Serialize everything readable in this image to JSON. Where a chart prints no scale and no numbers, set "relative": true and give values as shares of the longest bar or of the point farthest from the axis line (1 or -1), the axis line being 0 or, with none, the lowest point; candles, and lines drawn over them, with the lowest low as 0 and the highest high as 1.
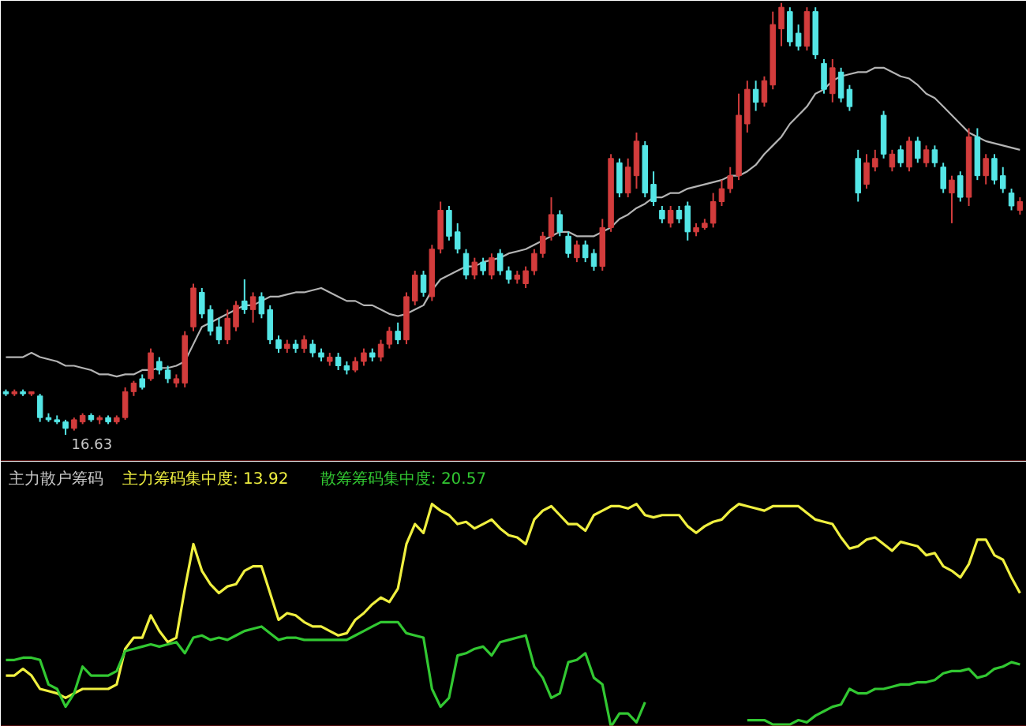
{
  "chart_data": [
    {
      "type": "candlestick",
      "relative": true,
      "categories": [
        null,
        null,
        null,
        null,
        null,
        null,
        null,
        null,
        null,
        null,
        null,
        null,
        null,
        null,
        null,
        null,
        null,
        null,
        null,
        null,
        null,
        null,
        null,
        null,
        null,
        null,
        null,
        null,
        null,
        null,
        null,
        null,
        null,
        null,
        null,
        null,
        null,
        null,
        null,
        null,
        null,
        null,
        null,
        null,
        null,
        null,
        null,
        null,
        null,
        null,
        null,
        null,
        null,
        null,
        null,
        null,
        null,
        null,
        null,
        null,
        null,
        null,
        null,
        null,
        null,
        null,
        null,
        null,
        null,
        null,
        null,
        null,
        null,
        null,
        null,
        null,
        null,
        null,
        null,
        null,
        null,
        null,
        null,
        null,
        null,
        null,
        null,
        null,
        null,
        null,
        null,
        null,
        null,
        null,
        null,
        null,
        null,
        null,
        null,
        null,
        null,
        null,
        null,
        null,
        null,
        null,
        null,
        null,
        null,
        null,
        null,
        null,
        null,
        null,
        null,
        null,
        null,
        null,
        null,
        null
      ],
      "ohlc": [
        [
          0.1,
          0.105,
          0.09,
          0.095
        ],
        [
          0.095,
          0.105,
          0.09,
          0.1
        ],
        [
          0.1,
          0.105,
          0.09,
          0.095
        ],
        [
          0.095,
          0.1,
          0.09,
          0.1
        ],
        [
          0.09,
          0.095,
          0.03,
          0.04
        ],
        [
          0.04,
          0.05,
          0.03,
          0.035
        ],
        [
          0.035,
          0.045,
          0.025,
          0.03
        ],
        [
          0.03,
          0.035,
          0.0,
          0.015
        ],
        [
          0.015,
          0.04,
          0.01,
          0.035
        ],
        [
          0.03,
          0.05,
          0.025,
          0.045
        ],
        [
          0.045,
          0.05,
          0.03,
          0.035
        ],
        [
          0.035,
          0.045,
          0.025,
          0.04
        ],
        [
          0.04,
          0.045,
          0.025,
          0.03
        ],
        [
          0.03,
          0.045,
          0.025,
          0.04
        ],
        [
          0.04,
          0.11,
          0.035,
          0.1
        ],
        [
          0.1,
          0.125,
          0.09,
          0.12
        ],
        [
          0.13,
          0.14,
          0.105,
          0.11
        ],
        [
          0.13,
          0.2,
          0.125,
          0.19
        ],
        [
          0.17,
          0.18,
          0.14,
          0.15
        ],
        [
          0.15,
          0.16,
          0.12,
          0.13
        ],
        [
          0.12,
          0.14,
          0.11,
          0.13
        ],
        [
          0.12,
          0.24,
          0.11,
          0.23
        ],
        [
          0.25,
          0.35,
          0.24,
          0.34
        ],
        [
          0.33,
          0.34,
          0.27,
          0.28
        ],
        [
          0.29,
          0.3,
          0.23,
          0.24
        ],
        [
          0.25,
          0.27,
          0.21,
          0.22
        ],
        [
          0.22,
          0.29,
          0.21,
          0.27
        ],
        [
          0.25,
          0.31,
          0.24,
          0.3
        ],
        [
          0.31,
          0.36,
          0.28,
          0.29
        ],
        [
          0.29,
          0.33,
          0.26,
          0.32
        ],
        [
          0.32,
          0.33,
          0.27,
          0.28
        ],
        [
          0.29,
          0.3,
          0.21,
          0.22
        ],
        [
          0.22,
          0.23,
          0.19,
          0.2
        ],
        [
          0.2,
          0.22,
          0.19,
          0.21
        ],
        [
          0.21,
          0.22,
          0.19,
          0.2
        ],
        [
          0.2,
          0.23,
          0.19,
          0.22
        ],
        [
          0.21,
          0.22,
          0.18,
          0.19
        ],
        [
          0.19,
          0.2,
          0.17,
          0.18
        ],
        [
          0.17,
          0.19,
          0.16,
          0.18
        ],
        [
          0.18,
          0.19,
          0.15,
          0.16
        ],
        [
          0.16,
          0.17,
          0.14,
          0.15
        ],
        [
          0.15,
          0.18,
          0.145,
          0.17
        ],
        [
          0.17,
          0.2,
          0.16,
          0.19
        ],
        [
          0.19,
          0.2,
          0.17,
          0.18
        ],
        [
          0.18,
          0.22,
          0.17,
          0.21
        ],
        [
          0.21,
          0.25,
          0.2,
          0.24
        ],
        [
          0.24,
          0.26,
          0.21,
          0.22
        ],
        [
          0.22,
          0.33,
          0.21,
          0.32
        ],
        [
          0.31,
          0.38,
          0.3,
          0.37
        ],
        [
          0.37,
          0.38,
          0.32,
          0.33
        ],
        [
          0.32,
          0.44,
          0.31,
          0.43
        ],
        [
          0.43,
          0.54,
          0.42,
          0.52
        ],
        [
          0.52,
          0.53,
          0.45,
          0.46
        ],
        [
          0.47,
          0.49,
          0.42,
          0.43
        ],
        [
          0.42,
          0.43,
          0.36,
          0.37
        ],
        [
          0.37,
          0.41,
          0.36,
          0.4
        ],
        [
          0.4,
          0.41,
          0.37,
          0.38
        ],
        [
          0.37,
          0.42,
          0.36,
          0.41
        ],
        [
          0.42,
          0.43,
          0.37,
          0.38
        ],
        [
          0.38,
          0.39,
          0.35,
          0.36
        ],
        [
          0.36,
          0.38,
          0.35,
          0.37
        ],
        [
          0.35,
          0.39,
          0.34,
          0.38
        ],
        [
          0.38,
          0.43,
          0.37,
          0.42
        ],
        [
          0.42,
          0.47,
          0.41,
          0.46
        ],
        [
          0.46,
          0.55,
          0.45,
          0.51
        ],
        [
          0.51,
          0.52,
          0.46,
          0.47
        ],
        [
          0.46,
          0.47,
          0.41,
          0.42
        ],
        [
          0.41,
          0.45,
          0.4,
          0.44
        ],
        [
          0.44,
          0.45,
          0.4,
          0.41
        ],
        [
          0.42,
          0.43,
          0.38,
          0.39
        ],
        [
          0.39,
          0.5,
          0.38,
          0.48
        ],
        [
          0.48,
          0.65,
          0.47,
          0.64
        ],
        [
          0.63,
          0.64,
          0.55,
          0.56
        ],
        [
          0.56,
          0.64,
          0.55,
          0.62
        ],
        [
          0.6,
          0.7,
          0.57,
          0.68
        ],
        [
          0.67,
          0.68,
          0.55,
          0.56
        ],
        [
          0.58,
          0.61,
          0.53,
          0.54
        ],
        [
          0.52,
          0.53,
          0.49,
          0.5
        ],
        [
          0.49,
          0.53,
          0.48,
          0.52
        ],
        [
          0.52,
          0.53,
          0.49,
          0.5
        ],
        [
          0.53,
          0.54,
          0.45,
          0.47
        ],
        [
          0.47,
          0.49,
          0.46,
          0.48
        ],
        [
          0.48,
          0.5,
          0.475,
          0.49
        ],
        [
          0.49,
          0.56,
          0.48,
          0.54
        ],
        [
          0.54,
          0.59,
          0.53,
          0.57
        ],
        [
          0.57,
          0.62,
          0.56,
          0.6
        ],
        [
          0.6,
          0.79,
          0.59,
          0.74
        ],
        [
          0.72,
          0.82,
          0.7,
          0.8
        ],
        [
          0.8,
          0.82,
          0.75,
          0.77
        ],
        [
          0.77,
          0.83,
          0.76,
          0.82
        ],
        [
          0.81,
          0.98,
          0.8,
          0.95
        ],
        [
          0.94,
          1.0,
          0.9,
          0.99
        ],
        [
          0.98,
          0.99,
          0.9,
          0.91
        ],
        [
          0.93,
          0.95,
          0.89,
          0.9
        ],
        [
          0.9,
          0.99,
          0.89,
          0.98
        ],
        [
          0.98,
          0.99,
          0.87,
          0.88
        ],
        [
          0.86,
          0.87,
          0.79,
          0.8
        ],
        [
          0.79,
          0.87,
          0.77,
          0.85
        ],
        [
          0.84,
          0.85,
          0.77,
          0.78
        ],
        [
          0.8,
          0.81,
          0.75,
          0.76
        ],
        [
          0.64,
          0.66,
          0.54,
          0.56
        ],
        [
          0.58,
          0.65,
          0.57,
          0.63
        ],
        [
          0.62,
          0.66,
          0.61,
          0.64
        ],
        [
          0.74,
          0.75,
          0.64,
          0.65
        ],
        [
          0.62,
          0.66,
          0.61,
          0.65
        ],
        [
          0.66,
          0.67,
          0.62,
          0.63
        ],
        [
          0.62,
          0.69,
          0.61,
          0.68
        ],
        [
          0.68,
          0.69,
          0.63,
          0.64
        ],
        [
          0.63,
          0.67,
          0.62,
          0.66
        ],
        [
          0.66,
          0.67,
          0.62,
          0.63
        ],
        [
          0.62,
          0.63,
          0.56,
          0.57
        ],
        [
          0.56,
          0.6,
          0.49,
          0.59
        ],
        [
          0.6,
          0.61,
          0.54,
          0.55
        ],
        [
          0.55,
          0.71,
          0.53,
          0.69
        ],
        [
          0.69,
          0.71,
          0.59,
          0.6
        ],
        [
          0.6,
          0.65,
          0.58,
          0.64
        ],
        [
          0.64,
          0.65,
          0.58,
          0.59
        ],
        [
          0.6,
          0.62,
          0.56,
          0.57
        ],
        [
          0.56,
          0.57,
          0.52,
          0.53
        ],
        [
          0.52,
          0.55,
          0.51,
          0.54
        ]
      ],
      "series": [
        {
          "type": "line",
          "color": "#b4b4b4",
          "values": [
            0.18,
            0.18,
            0.18,
            0.19,
            0.18,
            0.175,
            0.17,
            0.16,
            0.16,
            0.155,
            0.15,
            0.14,
            0.14,
            0.135,
            0.14,
            0.14,
            0.15,
            0.15,
            0.155,
            0.155,
            0.16,
            0.17,
            0.21,
            0.25,
            0.26,
            0.27,
            0.28,
            0.29,
            0.3,
            0.3,
            0.31,
            0.32,
            0.32,
            0.325,
            0.33,
            0.33,
            0.335,
            0.34,
            0.33,
            0.32,
            0.31,
            0.31,
            0.3,
            0.3,
            0.29,
            0.28,
            0.275,
            0.28,
            0.29,
            0.3,
            0.335,
            0.36,
            0.37,
            0.38,
            0.39,
            0.39,
            0.4,
            0.405,
            0.41,
            0.42,
            0.425,
            0.43,
            0.44,
            0.45,
            0.46,
            0.47,
            0.47,
            0.46,
            0.46,
            0.46,
            0.47,
            0.48,
            0.5,
            0.51,
            0.525,
            0.535,
            0.55,
            0.55,
            0.56,
            0.56,
            0.57,
            0.575,
            0.58,
            0.585,
            0.59,
            0.6,
            0.6,
            0.61,
            0.625,
            0.65,
            0.67,
            0.69,
            0.72,
            0.74,
            0.76,
            0.79,
            0.8,
            0.82,
            0.83,
            0.835,
            0.84,
            0.84,
            0.85,
            0.85,
            0.84,
            0.83,
            0.825,
            0.81,
            0.79,
            0.78,
            0.76,
            0.74,
            0.72,
            0.7,
            0.69,
            0.68,
            0.675,
            0.67,
            0.665,
            0.66
          ]
        }
      ],
      "annotations": [
        "16.63"
      ]
    },
    {
      "type": "line",
      "relative": true,
      "title": "主力散户筹码",
      "categories": [
        null,
        null,
        null,
        null,
        null,
        null,
        null,
        null,
        null,
        null,
        null,
        null,
        null,
        null,
        null,
        null,
        null,
        null,
        null,
        null,
        null,
        null,
        null,
        null,
        null,
        null,
        null,
        null,
        null,
        null,
        null,
        null,
        null,
        null,
        null,
        null,
        null,
        null,
        null,
        null,
        null,
        null,
        null,
        null,
        null,
        null,
        null,
        null,
        null,
        null,
        null,
        null,
        null,
        null,
        null,
        null,
        null,
        null,
        null,
        null,
        null,
        null,
        null,
        null,
        null,
        null,
        null,
        null,
        null,
        null,
        null,
        null,
        null,
        null,
        null,
        null,
        null,
        null,
        null,
        null,
        null,
        null,
        null,
        null,
        null,
        null,
        null,
        null,
        null,
        null,
        null,
        null,
        null,
        null,
        null,
        null,
        null,
        null,
        null,
        null,
        null,
        null,
        null,
        null,
        null,
        null,
        null,
        null,
        null,
        null,
        null,
        null,
        null,
        null,
        null,
        null,
        null,
        null,
        null,
        null
      ],
      "series": [
        {
          "name": "主力筹码集中度: 13.92",
          "color": "#f0f040",
          "values": [
            0.23,
            0.23,
            0.26,
            0.23,
            0.17,
            0.16,
            0.15,
            0.13,
            0.15,
            0.17,
            0.17,
            0.17,
            0.17,
            0.19,
            0.35,
            0.4,
            0.4,
            0.5,
            0.43,
            0.38,
            0.4,
            0.62,
            0.82,
            0.7,
            0.64,
            0.6,
            0.63,
            0.64,
            0.7,
            0.72,
            0.72,
            0.6,
            0.48,
            0.51,
            0.5,
            0.47,
            0.45,
            0.45,
            0.43,
            0.41,
            0.42,
            0.48,
            0.51,
            0.55,
            0.58,
            0.56,
            0.62,
            0.82,
            0.91,
            0.87,
            1.0,
            0.97,
            0.95,
            0.91,
            0.92,
            0.89,
            0.91,
            0.93,
            0.89,
            0.86,
            0.85,
            0.82,
            0.93,
            0.97,
            0.99,
            0.95,
            0.91,
            0.91,
            0.88,
            0.95,
            0.97,
            0.99,
            0.99,
            0.98,
            1.0,
            0.95,
            0.94,
            0.95,
            0.95,
            0.95,
            0.9,
            0.87,
            0.9,
            0.92,
            0.93,
            0.97,
            1.0,
            0.99,
            0.98,
            0.97,
            0.99,
            0.99,
            0.99,
            0.99,
            0.96,
            0.93,
            0.92,
            0.91,
            0.85,
            0.8,
            0.81,
            0.84,
            0.85,
            0.82,
            0.79,
            0.83,
            0.82,
            0.81,
            0.77,
            0.78,
            0.72,
            0.7,
            0.67,
            0.73,
            0.84,
            0.84,
            0.77,
            0.75,
            0.67,
            0.6
          ]
        },
        {
          "name": "散筹筹码集中度: 20.57",
          "color": "#32c832",
          "values": [
            0.3,
            0.3,
            0.31,
            0.31,
            0.3,
            0.19,
            0.17,
            0.09,
            0.15,
            0.27,
            0.23,
            0.23,
            0.23,
            0.25,
            0.34,
            0.35,
            0.36,
            0.37,
            0.36,
            0.37,
            0.38,
            0.33,
            0.4,
            0.41,
            0.39,
            0.4,
            0.39,
            0.41,
            0.43,
            0.44,
            0.45,
            0.42,
            0.39,
            0.4,
            0.4,
            0.39,
            0.39,
            0.39,
            0.39,
            0.39,
            0.39,
            0.41,
            0.43,
            0.45,
            0.47,
            0.47,
            0.47,
            0.42,
            0.41,
            0.4,
            0.17,
            0.09,
            0.13,
            0.32,
            0.33,
            0.35,
            0.36,
            0.32,
            0.38,
            0.39,
            0.4,
            0.41,
            0.27,
            0.22,
            0.13,
            0.15,
            0.29,
            0.3,
            0.33,
            0.22,
            0.19,
            0.0,
            0.06,
            0.06,
            0.02,
            0.11,
            null,
            null,
            null,
            null,
            null,
            null,
            null,
            null,
            null,
            null,
            null,
            0.03,
            0.03,
            0.03,
            0.01,
            0.01,
            0.01,
            0.03,
            0.02,
            0.05,
            0.07,
            0.09,
            0.1,
            0.17,
            0.15,
            0.15,
            0.17,
            0.17,
            0.18,
            0.19,
            0.19,
            0.2,
            0.2,
            0.21,
            0.24,
            0.25,
            0.25,
            0.26,
            0.22,
            0.23,
            0.26,
            0.27,
            0.29,
            0.28
          ]
        }
      ]
    }
  ]
}
